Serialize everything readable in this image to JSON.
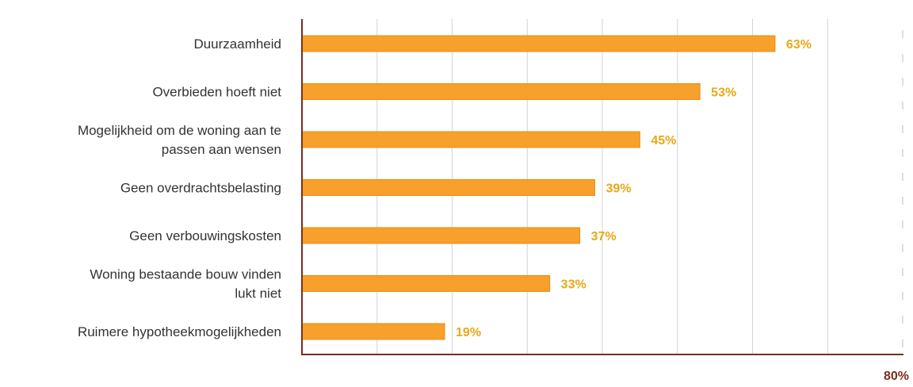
{
  "chart_data": {
    "type": "bar",
    "orientation": "horizontal",
    "categories": [
      [
        "Duurzaamheid"
      ],
      [
        "Overbieden hoeft niet"
      ],
      [
        "Mogelijkheid om de woning aan te",
        "passen aan wensen"
      ],
      [
        "Geen overdrachtsbelasting"
      ],
      [
        "Geen verbouwingskosten"
      ],
      [
        "Woning bestaande bouw vinden",
        "lukt niet"
      ],
      [
        "Ruimere hypotheekmogelijkheden"
      ]
    ],
    "values": [
      63,
      53,
      45,
      39,
      37,
      33,
      19
    ],
    "value_labels": [
      "63%",
      "53%",
      "45%",
      "39%",
      "37%",
      "33%",
      "19%"
    ],
    "xlim": [
      0,
      80
    ],
    "x_tick_labels": [
      "80%"
    ],
    "grid": true,
    "title": "",
    "xlabel": "",
    "ylabel": ""
  },
  "colors": {
    "bar": "#f7a02b",
    "bar_edge": "#e58e15",
    "value_label": "#e8a818",
    "axis": "#7a2e1e",
    "grid": "#d4d4d4",
    "tick_label": "#7a2e1e",
    "category_label": "#333333"
  }
}
